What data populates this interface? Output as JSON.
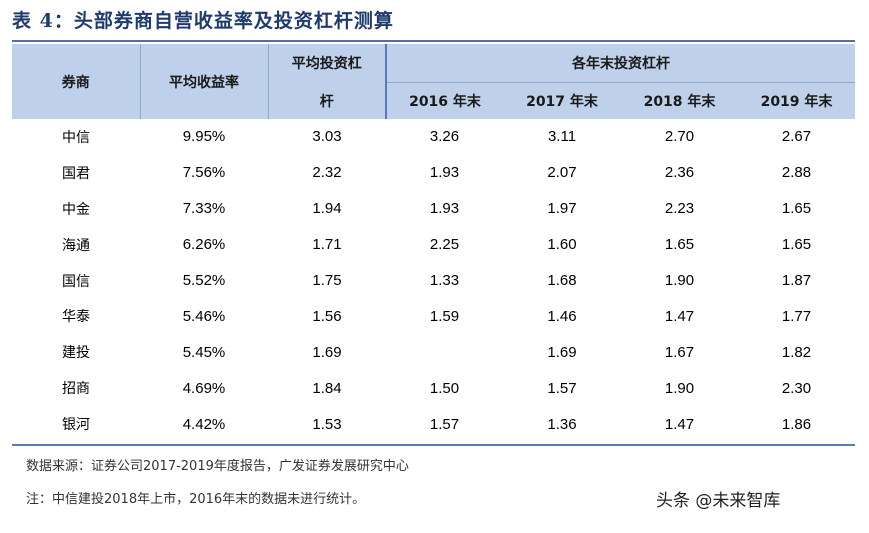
{
  "title": "表 4：头部券商自营收益率及投资杠杆测算",
  "headers": {
    "broker": "券商",
    "avg_return": "平均收益率",
    "avg_leverage_1": "平均投资杠",
    "avg_leverage_2": "杆",
    "group": "各年末投资杠杆",
    "years": [
      "2016 年末",
      "2017 年末",
      "2018 年末",
      "2019 年末"
    ]
  },
  "rows": [
    {
      "broker": "中信",
      "ret": "9.95%",
      "lev": "3.03",
      "y2016": "3.26",
      "y2017": "3.11",
      "y2018": "2.70",
      "y2019": "2.67"
    },
    {
      "broker": "国君",
      "ret": "7.56%",
      "lev": "2.32",
      "y2016": "1.93",
      "y2017": "2.07",
      "y2018": "2.36",
      "y2019": "2.88"
    },
    {
      "broker": "中金",
      "ret": "7.33%",
      "lev": "1.94",
      "y2016": "1.93",
      "y2017": "1.97",
      "y2018": "2.23",
      "y2019": "1.65"
    },
    {
      "broker": "海通",
      "ret": "6.26%",
      "lev": "1.71",
      "y2016": "2.25",
      "y2017": "1.60",
      "y2018": "1.65",
      "y2019": "1.65"
    },
    {
      "broker": "国信",
      "ret": "5.52%",
      "lev": "1.75",
      "y2016": "1.33",
      "y2017": "1.68",
      "y2018": "1.90",
      "y2019": "1.87"
    },
    {
      "broker": "华泰",
      "ret": "5.46%",
      "lev": "1.56",
      "y2016": "1.59",
      "y2017": "1.46",
      "y2018": "1.47",
      "y2019": "1.77"
    },
    {
      "broker": "建投",
      "ret": "5.45%",
      "lev": "1.69",
      "y2016": "",
      "y2017": "1.69",
      "y2018": "1.67",
      "y2019": "1.82"
    },
    {
      "broker": "招商",
      "ret": "4.69%",
      "lev": "1.84",
      "y2016": "1.50",
      "y2017": "1.57",
      "y2018": "1.90",
      "y2019": "2.30"
    },
    {
      "broker": "银河",
      "ret": "4.42%",
      "lev": "1.53",
      "y2016": "1.57",
      "y2017": "1.36",
      "y2018": "1.47",
      "y2019": "1.86"
    }
  ],
  "source": "数据来源：证券公司2017-2019年度报告，广发证券发展研究中心",
  "note": "注：中信建投2018年上市，2016年末的数据未进行统计。",
  "watermark": "头条 @未来智库"
}
